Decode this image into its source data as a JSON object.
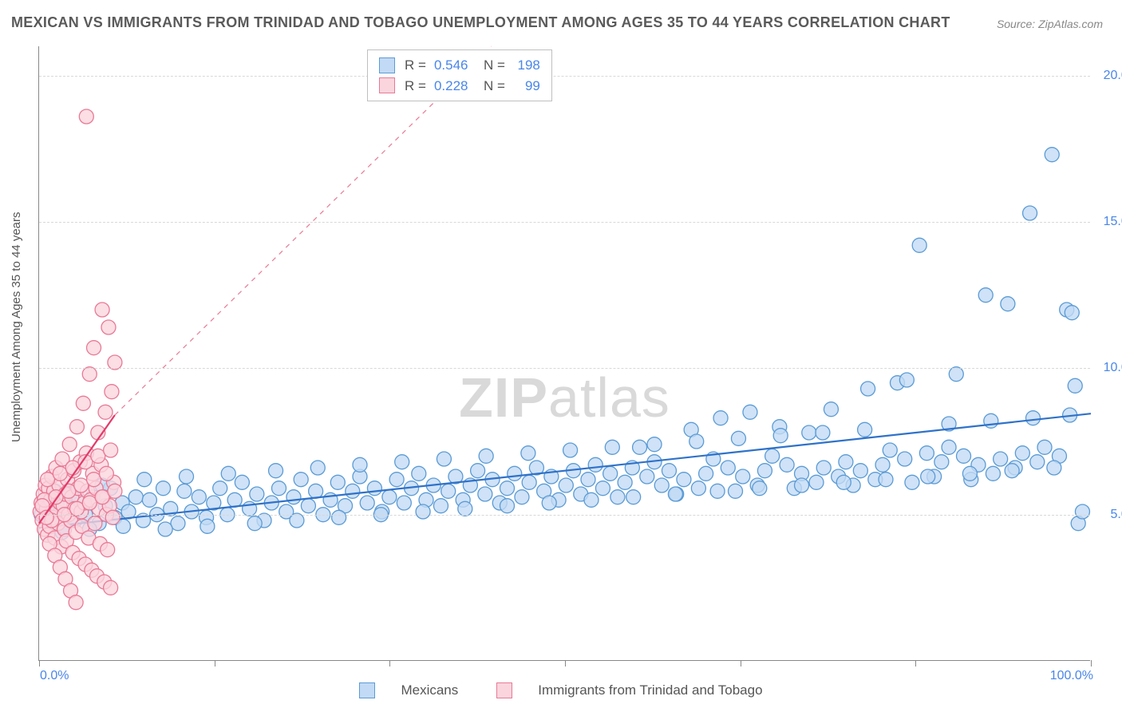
{
  "title": "MEXICAN VS IMMIGRANTS FROM TRINIDAD AND TOBAGO UNEMPLOYMENT AMONG AGES 35 TO 44 YEARS CORRELATION CHART",
  "source_label": "Source: ZipAtlas.com",
  "y_axis_title": "Unemployment Among Ages 35 to 44 years",
  "watermark_prefix": "ZIP",
  "watermark_suffix": "atlas",
  "chart": {
    "type": "scatter",
    "background_color": "#ffffff",
    "grid_color": "#d8d8d8",
    "axis_color": "#888888",
    "label_color": "#4a86e8",
    "label_fontsize": 16,
    "title_color": "#5a5a5a",
    "title_fontsize": 18,
    "xlim": [
      0,
      100
    ],
    "ylim": [
      0,
      21
    ],
    "x_tick_positions": [
      0,
      16.67,
      33.33,
      50,
      66.67,
      83.33,
      100
    ],
    "x_start_label": "0.0%",
    "x_end_label": "100.0%",
    "y_ticks": [
      {
        "value": 5.0,
        "label": "5.0%"
      },
      {
        "value": 10.0,
        "label": "10.0%"
      },
      {
        "value": 15.0,
        "label": "15.0%"
      },
      {
        "value": 20.0,
        "label": "20.0%"
      }
    ],
    "marker_radius": 9,
    "marker_stroke_width": 1.3,
    "line_width": 2.2,
    "series": [
      {
        "key": "mexicans",
        "label": "Mexicans",
        "fill": "#c2daf5",
        "stroke": "#5b9bd5",
        "line_color": "#2f72c9",
        "R": "0.546",
        "N": "198",
        "regression": {
          "x1": 0,
          "y1": 4.55,
          "x2": 100,
          "y2": 8.45
        },
        "points": [
          [
            0.2,
            5.0
          ],
          [
            0.6,
            4.9
          ],
          [
            1.1,
            5.4
          ],
          [
            1.7,
            5.3
          ],
          [
            2.3,
            4.6
          ],
          [
            2.9,
            5.7
          ],
          [
            3.4,
            4.8
          ],
          [
            3.8,
            5.5
          ],
          [
            4.4,
            5.0
          ],
          [
            5.1,
            5.6
          ],
          [
            5.7,
            4.7
          ],
          [
            6.3,
            5.3
          ],
          [
            6.8,
            5.9
          ],
          [
            7.2,
            4.9
          ],
          [
            7.9,
            5.4
          ],
          [
            8.5,
            5.1
          ],
          [
            9.2,
            5.6
          ],
          [
            9.9,
            4.8
          ],
          [
            10.5,
            5.5
          ],
          [
            11.2,
            5.0
          ],
          [
            11.8,
            5.9
          ],
          [
            12.5,
            5.2
          ],
          [
            13.2,
            4.7
          ],
          [
            13.8,
            5.8
          ],
          [
            14.5,
            5.1
          ],
          [
            15.2,
            5.6
          ],
          [
            15.9,
            4.9
          ],
          [
            16.6,
            5.4
          ],
          [
            17.2,
            5.9
          ],
          [
            17.9,
            5.0
          ],
          [
            18.6,
            5.5
          ],
          [
            19.3,
            6.1
          ],
          [
            20.0,
            5.2
          ],
          [
            20.7,
            5.7
          ],
          [
            21.4,
            4.8
          ],
          [
            22.1,
            5.4
          ],
          [
            22.8,
            5.9
          ],
          [
            23.5,
            5.1
          ],
          [
            24.2,
            5.6
          ],
          [
            24.9,
            6.2
          ],
          [
            25.6,
            5.3
          ],
          [
            26.3,
            5.8
          ],
          [
            27.0,
            5.0
          ],
          [
            27.7,
            5.5
          ],
          [
            28.4,
            6.1
          ],
          [
            29.1,
            5.3
          ],
          [
            29.8,
            5.8
          ],
          [
            30.5,
            6.3
          ],
          [
            31.2,
            5.4
          ],
          [
            31.9,
            5.9
          ],
          [
            32.6,
            5.1
          ],
          [
            33.3,
            5.6
          ],
          [
            34.0,
            6.2
          ],
          [
            34.7,
            5.4
          ],
          [
            35.4,
            5.9
          ],
          [
            36.1,
            6.4
          ],
          [
            36.8,
            5.5
          ],
          [
            37.5,
            6.0
          ],
          [
            38.2,
            5.3
          ],
          [
            38.9,
            5.8
          ],
          [
            39.6,
            6.3
          ],
          [
            40.3,
            5.5
          ],
          [
            41.0,
            6.0
          ],
          [
            41.7,
            6.5
          ],
          [
            42.4,
            5.7
          ],
          [
            43.1,
            6.2
          ],
          [
            43.8,
            5.4
          ],
          [
            44.5,
            5.9
          ],
          [
            45.2,
            6.4
          ],
          [
            45.9,
            5.6
          ],
          [
            46.6,
            6.1
          ],
          [
            47.3,
            6.6
          ],
          [
            48.0,
            5.8
          ],
          [
            48.7,
            6.3
          ],
          [
            49.4,
            5.5
          ],
          [
            50.1,
            6.0
          ],
          [
            50.8,
            6.5
          ],
          [
            51.5,
            5.7
          ],
          [
            52.2,
            6.2
          ],
          [
            52.9,
            6.7
          ],
          [
            53.6,
            5.9
          ],
          [
            54.3,
            6.4
          ],
          [
            55.0,
            5.6
          ],
          [
            55.7,
            6.1
          ],
          [
            56.4,
            6.6
          ],
          [
            57.1,
            7.3
          ],
          [
            57.8,
            6.3
          ],
          [
            58.5,
            6.8
          ],
          [
            59.2,
            6.0
          ],
          [
            59.9,
            6.5
          ],
          [
            60.6,
            5.7
          ],
          [
            61.3,
            6.2
          ],
          [
            62.0,
            7.9
          ],
          [
            62.7,
            5.9
          ],
          [
            63.4,
            6.4
          ],
          [
            64.1,
            6.9
          ],
          [
            64.8,
            8.3
          ],
          [
            65.5,
            6.6
          ],
          [
            66.2,
            5.8
          ],
          [
            66.9,
            6.3
          ],
          [
            67.6,
            8.5
          ],
          [
            68.3,
            6.0
          ],
          [
            69.0,
            6.5
          ],
          [
            69.7,
            7.0
          ],
          [
            70.4,
            8.0
          ],
          [
            71.1,
            6.7
          ],
          [
            71.8,
            5.9
          ],
          [
            72.5,
            6.4
          ],
          [
            73.2,
            7.8
          ],
          [
            73.9,
            6.1
          ],
          [
            74.6,
            6.6
          ],
          [
            75.3,
            8.6
          ],
          [
            76.0,
            6.3
          ],
          [
            76.7,
            6.8
          ],
          [
            77.4,
            6.0
          ],
          [
            78.1,
            6.5
          ],
          [
            78.8,
            9.3
          ],
          [
            79.5,
            6.2
          ],
          [
            80.2,
            6.7
          ],
          [
            80.9,
            7.2
          ],
          [
            81.6,
            9.5
          ],
          [
            82.3,
            6.9
          ],
          [
            83.0,
            6.1
          ],
          [
            83.7,
            14.2
          ],
          [
            84.4,
            7.1
          ],
          [
            85.1,
            6.3
          ],
          [
            85.8,
            6.8
          ],
          [
            86.5,
            7.3
          ],
          [
            87.2,
            9.8
          ],
          [
            87.9,
            7.0
          ],
          [
            88.6,
            6.2
          ],
          [
            89.3,
            6.7
          ],
          [
            90.0,
            12.5
          ],
          [
            90.7,
            6.4
          ],
          [
            91.4,
            6.9
          ],
          [
            92.1,
            12.2
          ],
          [
            92.8,
            6.6
          ],
          [
            93.5,
            7.1
          ],
          [
            94.2,
            15.3
          ],
          [
            94.9,
            6.8
          ],
          [
            95.6,
            7.3
          ],
          [
            96.3,
            17.3
          ],
          [
            97.0,
            7.0
          ],
          [
            97.7,
            12.0
          ],
          [
            98.2,
            11.9
          ],
          [
            98.5,
            9.4
          ],
          [
            98.8,
            4.7
          ],
          [
            99.2,
            5.1
          ],
          [
            1.5,
            5.8
          ],
          [
            2.2,
            4.4
          ],
          [
            4.8,
            4.5
          ],
          [
            6.0,
            6.0
          ],
          [
            8.0,
            4.6
          ],
          [
            10.0,
            6.2
          ],
          [
            12.0,
            4.5
          ],
          [
            14.0,
            6.3
          ],
          [
            16.0,
            4.6
          ],
          [
            18.0,
            6.4
          ],
          [
            20.5,
            4.7
          ],
          [
            22.5,
            6.5
          ],
          [
            24.5,
            4.8
          ],
          [
            26.5,
            6.6
          ],
          [
            28.5,
            4.9
          ],
          [
            30.5,
            6.7
          ],
          [
            32.5,
            5.0
          ],
          [
            34.5,
            6.8
          ],
          [
            36.5,
            5.1
          ],
          [
            38.5,
            6.9
          ],
          [
            40.5,
            5.2
          ],
          [
            42.5,
            7.0
          ],
          [
            44.5,
            5.3
          ],
          [
            46.5,
            7.1
          ],
          [
            48.5,
            5.4
          ],
          [
            50.5,
            7.2
          ],
          [
            52.5,
            5.5
          ],
          [
            54.5,
            7.3
          ],
          [
            56.5,
            5.6
          ],
          [
            58.5,
            7.4
          ],
          [
            60.5,
            5.7
          ],
          [
            62.5,
            7.5
          ],
          [
            64.5,
            5.8
          ],
          [
            66.5,
            7.6
          ],
          [
            68.5,
            5.9
          ],
          [
            70.5,
            7.7
          ],
          [
            72.5,
            6.0
          ],
          [
            74.5,
            7.8
          ],
          [
            76.5,
            6.1
          ],
          [
            78.5,
            7.9
          ],
          [
            80.5,
            6.2
          ],
          [
            82.5,
            9.6
          ],
          [
            84.5,
            6.3
          ],
          [
            86.5,
            8.1
          ],
          [
            88.5,
            6.4
          ],
          [
            90.5,
            8.2
          ],
          [
            92.5,
            6.5
          ],
          [
            94.5,
            8.3
          ],
          [
            96.5,
            6.6
          ],
          [
            98.0,
            8.4
          ]
        ]
      },
      {
        "key": "trinidad",
        "label": "Immigrants from Trinidad and Tobago",
        "fill": "#fbd5de",
        "stroke": "#e87a95",
        "line_color": "#e23b6a",
        "R": "0.228",
        "N": "99",
        "regression": {
          "x1": 0,
          "y1": 4.7,
          "x2": 7.2,
          "y2": 8.4
        },
        "regression_ext": {
          "x1": 7.2,
          "y1": 8.4,
          "x2": 43,
          "y2": 21.0
        },
        "points": [
          [
            0.1,
            5.1
          ],
          [
            0.2,
            5.4
          ],
          [
            0.3,
            4.8
          ],
          [
            0.4,
            5.7
          ],
          [
            0.5,
            4.5
          ],
          [
            0.6,
            6.0
          ],
          [
            0.7,
            5.2
          ],
          [
            0.8,
            4.3
          ],
          [
            0.9,
            5.9
          ],
          [
            1.0,
            4.6
          ],
          [
            1.1,
            5.5
          ],
          [
            1.2,
            6.3
          ],
          [
            1.3,
            4.9
          ],
          [
            1.4,
            5.8
          ],
          [
            1.5,
            4.2
          ],
          [
            1.6,
            6.6
          ],
          [
            1.7,
            5.1
          ],
          [
            1.8,
            4.7
          ],
          [
            1.9,
            6.0
          ],
          [
            2.0,
            5.4
          ],
          [
            2.1,
            3.9
          ],
          [
            2.2,
            6.9
          ],
          [
            2.3,
            5.3
          ],
          [
            2.4,
            4.5
          ],
          [
            2.5,
            5.7
          ],
          [
            2.6,
            4.1
          ],
          [
            2.7,
            6.2
          ],
          [
            2.8,
            5.0
          ],
          [
            2.9,
            7.4
          ],
          [
            3.0,
            4.8
          ],
          [
            3.1,
            5.6
          ],
          [
            3.2,
            3.7
          ],
          [
            3.3,
            6.5
          ],
          [
            3.4,
            5.2
          ],
          [
            3.5,
            4.4
          ],
          [
            3.6,
            8.0
          ],
          [
            3.7,
            5.9
          ],
          [
            3.8,
            3.5
          ],
          [
            3.9,
            6.8
          ],
          [
            4.0,
            5.1
          ],
          [
            4.1,
            4.6
          ],
          [
            4.2,
            8.8
          ],
          [
            4.3,
            5.4
          ],
          [
            4.4,
            3.3
          ],
          [
            4.5,
            7.1
          ],
          [
            4.6,
            5.8
          ],
          [
            4.7,
            4.2
          ],
          [
            4.8,
            9.8
          ],
          [
            4.9,
            5.5
          ],
          [
            5.0,
            3.1
          ],
          [
            5.1,
            6.4
          ],
          [
            5.2,
            10.7
          ],
          [
            5.3,
            4.7
          ],
          [
            5.4,
            5.9
          ],
          [
            5.5,
            2.9
          ],
          [
            5.6,
            7.8
          ],
          [
            5.7,
            5.2
          ],
          [
            5.8,
            4.0
          ],
          [
            5.9,
            6.7
          ],
          [
            6.0,
            12.0
          ],
          [
            6.1,
            5.6
          ],
          [
            6.2,
            2.7
          ],
          [
            6.3,
            8.5
          ],
          [
            6.4,
            5.0
          ],
          [
            6.5,
            3.8
          ],
          [
            6.6,
            11.4
          ],
          [
            6.7,
            5.3
          ],
          [
            6.8,
            2.5
          ],
          [
            6.9,
            9.2
          ],
          [
            7.0,
            4.9
          ],
          [
            7.1,
            6.1
          ],
          [
            7.2,
            10.2
          ],
          [
            4.5,
            18.6
          ],
          [
            1.0,
            4.0
          ],
          [
            1.5,
            3.6
          ],
          [
            2.0,
            3.2
          ],
          [
            2.5,
            2.8
          ],
          [
            3.0,
            2.4
          ],
          [
            3.5,
            2.0
          ],
          [
            0.5,
            5.5
          ],
          [
            0.8,
            6.2
          ],
          [
            1.2,
            4.8
          ],
          [
            1.6,
            5.6
          ],
          [
            2.0,
            6.4
          ],
          [
            2.4,
            5.0
          ],
          [
            2.8,
            5.8
          ],
          [
            3.2,
            6.6
          ],
          [
            3.6,
            5.2
          ],
          [
            4.0,
            6.0
          ],
          [
            4.4,
            6.8
          ],
          [
            4.8,
            5.4
          ],
          [
            5.2,
            6.2
          ],
          [
            5.6,
            7.0
          ],
          [
            6.0,
            5.6
          ],
          [
            6.4,
            6.4
          ],
          [
            6.8,
            7.2
          ],
          [
            7.2,
            5.8
          ],
          [
            0.3,
            5.3
          ],
          [
            0.7,
            4.9
          ]
        ]
      }
    ]
  },
  "legend": {
    "R_label": "R =",
    "N_label": "N =",
    "value_color": "#4a86e8",
    "text_color": "#555555"
  }
}
